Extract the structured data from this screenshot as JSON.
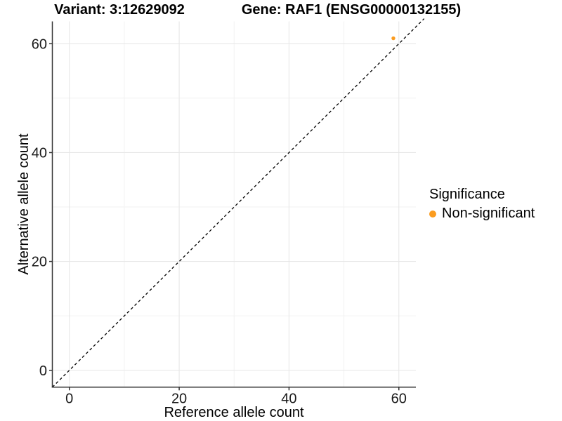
{
  "chart_data": {
    "type": "scatter",
    "title_left": "Variant: 3:12629092",
    "title_right": "Gene: RAF1 (ENSG00000132155)",
    "xlabel": "Reference allele count",
    "ylabel": "Alternative allele count",
    "xlim": [
      -3.1,
      63.1
    ],
    "ylim": [
      -3.1,
      64.1
    ],
    "x_ticks": [
      0,
      20,
      40,
      60
    ],
    "y_ticks": [
      0,
      20,
      40,
      60
    ],
    "x_minor_ticks": [
      10,
      30,
      50
    ],
    "y_minor_ticks": [
      10,
      30,
      50
    ],
    "grid": "major+minor",
    "points": [
      {
        "x": 59,
        "y": 61,
        "series": "Non-significant"
      }
    ],
    "reference_line": {
      "type": "identity",
      "slope": 1,
      "intercept": 0,
      "style": "dashed",
      "color": "#000000"
    },
    "legend": {
      "title": "Significance",
      "position": "right",
      "items": [
        {
          "label": "Non-significant",
          "color": "#FB9C20",
          "marker": "circle"
        }
      ]
    },
    "colors": {
      "point": "#FB9C20",
      "grid_major": "#E7E7E7",
      "grid_minor": "#F2F2F2",
      "axis_line": "#333333",
      "tick_text": "#1A1A1A",
      "background": "#FFFFFF"
    }
  }
}
